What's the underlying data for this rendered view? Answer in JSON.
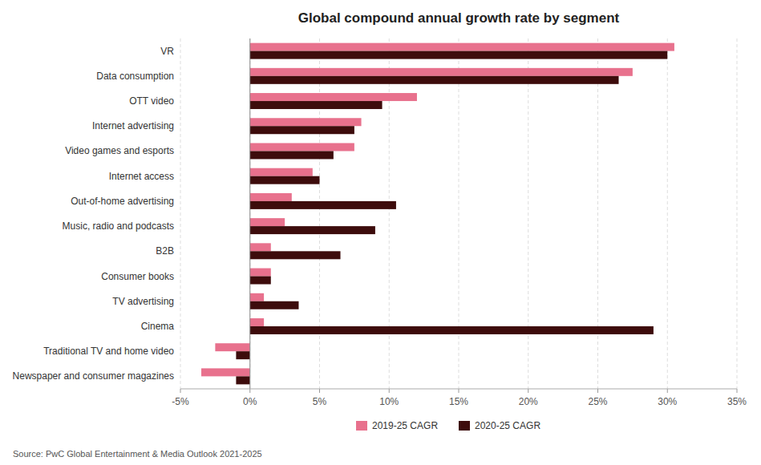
{
  "chart_data": {
    "type": "bar",
    "orientation": "horizontal",
    "title": "Global compound annual growth rate by segment",
    "source": "Source: PwC Global Entertainment & Media Outlook 2021-2025",
    "categories": [
      "VR",
      "Data consumption",
      "OTT video",
      "Internet advertising",
      "Video games and esports",
      "Internet access",
      "Out-of-home advertising",
      "Music, radio and podcasts",
      "B2B",
      "Consumer books",
      "TV advertising",
      "Cinema",
      "Traditional TV and home video",
      "Newspaper and consumer magazines"
    ],
    "series": [
      {
        "name": "2019-25 CAGR",
        "color": "#e8718d",
        "values": [
          30.5,
          27.5,
          12.0,
          8.0,
          7.5,
          4.5,
          3.0,
          2.5,
          1.5,
          1.5,
          1.0,
          1.0,
          -2.5,
          -3.5
        ]
      },
      {
        "name": "2020-25 CAGR",
        "color": "#3d0c0c",
        "values": [
          30.0,
          26.5,
          9.5,
          7.5,
          6.0,
          5.0,
          10.5,
          9.0,
          6.5,
          1.5,
          3.5,
          29.0,
          -1.0,
          -1.0
        ]
      }
    ],
    "xlim": [
      -5,
      35
    ],
    "xticks": [
      {
        "value": -5,
        "label": "-5%"
      },
      {
        "value": 0,
        "label": "0%"
      },
      {
        "value": 5,
        "label": "5%"
      },
      {
        "value": 10,
        "label": "10%"
      },
      {
        "value": 15,
        "label": "15%"
      },
      {
        "value": 20,
        "label": "20%"
      },
      {
        "value": 25,
        "label": "25%"
      },
      {
        "value": 30,
        "label": "30%"
      },
      {
        "value": 35,
        "label": "35%"
      }
    ],
    "grid": true,
    "legend": "bottom"
  }
}
